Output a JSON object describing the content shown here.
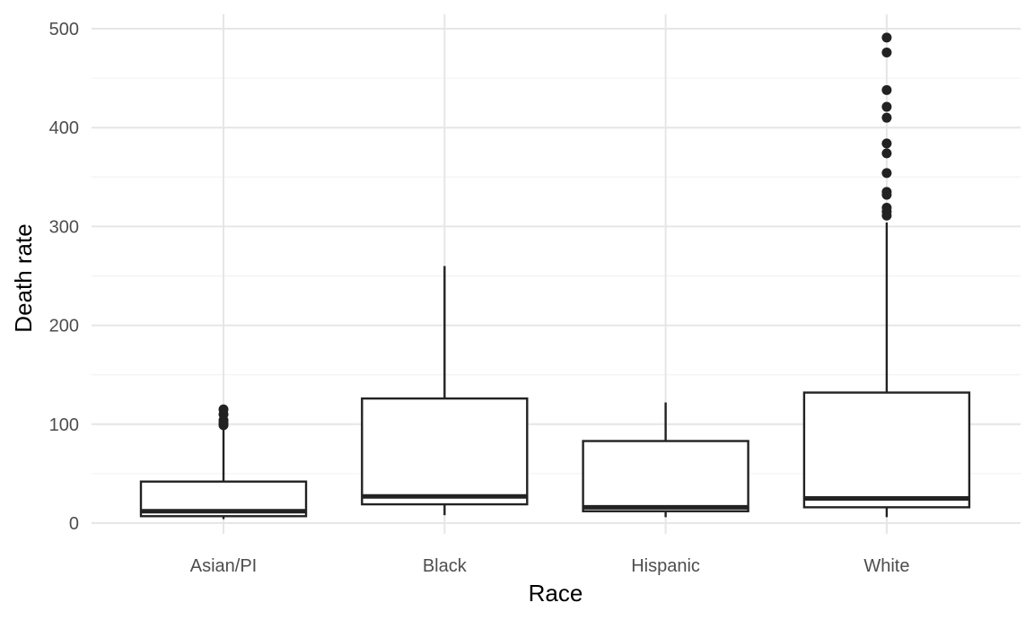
{
  "chart_data": {
    "type": "boxplot",
    "xlabel": "Race",
    "ylabel": "Death rate",
    "ylim": [
      -10,
      515
    ],
    "yticks": [
      0,
      100,
      200,
      300,
      400,
      500
    ],
    "grid": true,
    "legend": "none",
    "categories": [
      "Asian/PI",
      "Black",
      "Hispanic",
      "White"
    ],
    "boxes": [
      {
        "category": "Asian/PI",
        "whisker_low": 4,
        "q1": 7,
        "median": 12,
        "q3": 42,
        "whisker_high": 97,
        "outliers": [
          99,
          101,
          104,
          110,
          115
        ]
      },
      {
        "category": "Black",
        "whisker_low": 8,
        "q1": 19,
        "median": 27,
        "q3": 126,
        "whisker_high": 260,
        "outliers": []
      },
      {
        "category": "Hispanic",
        "whisker_low": 6,
        "q1": 12,
        "median": 16,
        "q3": 83,
        "whisker_high": 122,
        "outliers": []
      },
      {
        "category": "White",
        "whisker_low": 6,
        "q1": 16,
        "median": 25,
        "q3": 132,
        "whisker_high": 304,
        "outliers": [
          311,
          315,
          319,
          332,
          335,
          354,
          374,
          384,
          410,
          421,
          438,
          476,
          491
        ]
      }
    ]
  }
}
